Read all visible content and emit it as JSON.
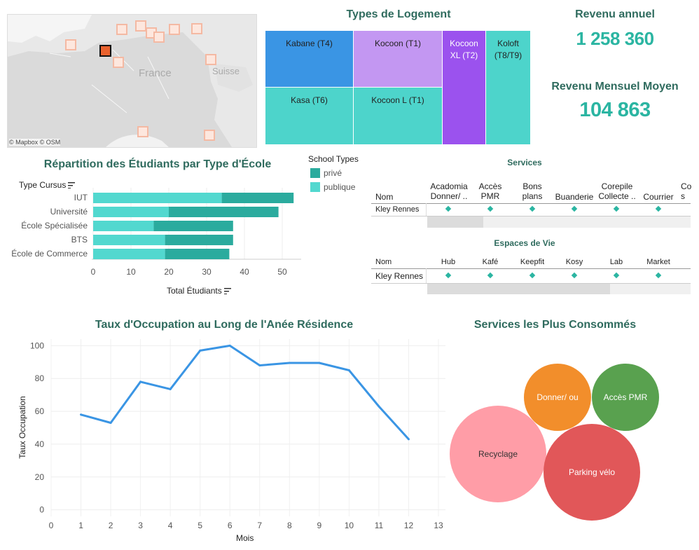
{
  "map": {
    "labels": {
      "country1": "France",
      "country2": "Suisse"
    },
    "attribution": "© Mapbox  © OSM"
  },
  "treemap": {
    "title": "Types de Logement",
    "tiles": [
      {
        "label": "Kabane (T4)",
        "color": "#3a95e4"
      },
      {
        "label": "Kocoon (T1)",
        "color": "#c397f2"
      },
      {
        "label": "Kocoon XL (T2)",
        "color": "#9b52ee"
      },
      {
        "label": "Koloft (T8/T9)",
        "color": "#4dd4cb"
      },
      {
        "label": "Kasa (T6)",
        "color": "#4dd4cb"
      },
      {
        "label": "Kocoon L (T1)",
        "color": "#4dd4cb"
      }
    ]
  },
  "kpis": {
    "annual_label": "Revenu annuel",
    "annual_value": "1 258 360",
    "monthly_label": "Revenu Mensuel Moyen",
    "monthly_value": "104 863"
  },
  "students": {
    "title": "Répartition des Étudiants par Type d'École",
    "row_header": "Type Cursus",
    "axis_title": "Total Étudiants",
    "legend_title": "School Types",
    "legend": [
      {
        "name": "privé",
        "color": "#2bab9e"
      },
      {
        "name": "publique",
        "color": "#52d8cf"
      }
    ]
  },
  "services": {
    "title": "Services",
    "col_nom": "Nom",
    "columns": [
      "Acadomia Donner/ ..",
      "Accès PMR",
      "Bons plans",
      "Buanderie",
      "Corepile Collecte ..",
      "Courrier",
      "Co s"
    ],
    "row": "Kley Rennes"
  },
  "espaces": {
    "title": "Espaces de Vie",
    "col_nom": "Nom",
    "columns": [
      "Hub",
      "Kafé",
      "Keepfit",
      "Kosy",
      "Lab",
      "Market"
    ],
    "row": "Kley Rennes"
  },
  "occupancy": {
    "title": "Taux d'Occupation au Long de l'Anée Résidence",
    "xlabel": "Mois",
    "ylabel": "Taux Occupation"
  },
  "bubbles": {
    "title": "Services les Plus Consommés",
    "items": [
      {
        "label": "Donner/ ou",
        "color": "#f28e2b"
      },
      {
        "label": "Accès PMR",
        "color": "#59a14f"
      },
      {
        "label": "Recyclage",
        "color": "#ff9da7"
      },
      {
        "label": "Parking vélo",
        "color": "#e15759"
      }
    ]
  },
  "chart_data": [
    {
      "type": "bar",
      "orientation": "horizontal",
      "stacked": true,
      "title": "Répartition des Étudiants par Type d'École",
      "xlabel": "Total Étudiants",
      "ylabel": "Type Cursus",
      "categories": [
        "IUT",
        "Université",
        "École Spécialisée",
        "BTS",
        "École de Commerce"
      ],
      "series": [
        {
          "name": "publique",
          "values": [
            34,
            20,
            16,
            19,
            19
          ]
        },
        {
          "name": "privé",
          "values": [
            19,
            29,
            21,
            18,
            17
          ]
        }
      ],
      "xlim": [
        0,
        55
      ],
      "xticks": [
        0,
        10,
        20,
        30,
        40,
        50
      ],
      "grid": true,
      "legend": "top-right"
    },
    {
      "type": "line",
      "title": "Taux d'Occupation au Long de l'Anée Résidence",
      "xlabel": "Mois",
      "ylabel": "Taux Occupation",
      "x": [
        1,
        2,
        3,
        4,
        5,
        6,
        7,
        8,
        9,
        10,
        11,
        12
      ],
      "values": [
        58,
        53,
        78,
        73.5,
        97,
        100,
        88,
        89.5,
        89.5,
        85,
        63,
        43
      ],
      "xlim": [
        0,
        13
      ],
      "ylim": [
        -4,
        104
      ],
      "xticks": [
        0,
        1,
        2,
        3,
        4,
        5,
        6,
        7,
        8,
        9,
        10,
        11,
        12,
        13
      ],
      "yticks": [
        0,
        20,
        40,
        60,
        80,
        100
      ],
      "color": "#3a95e4",
      "grid": true
    }
  ]
}
